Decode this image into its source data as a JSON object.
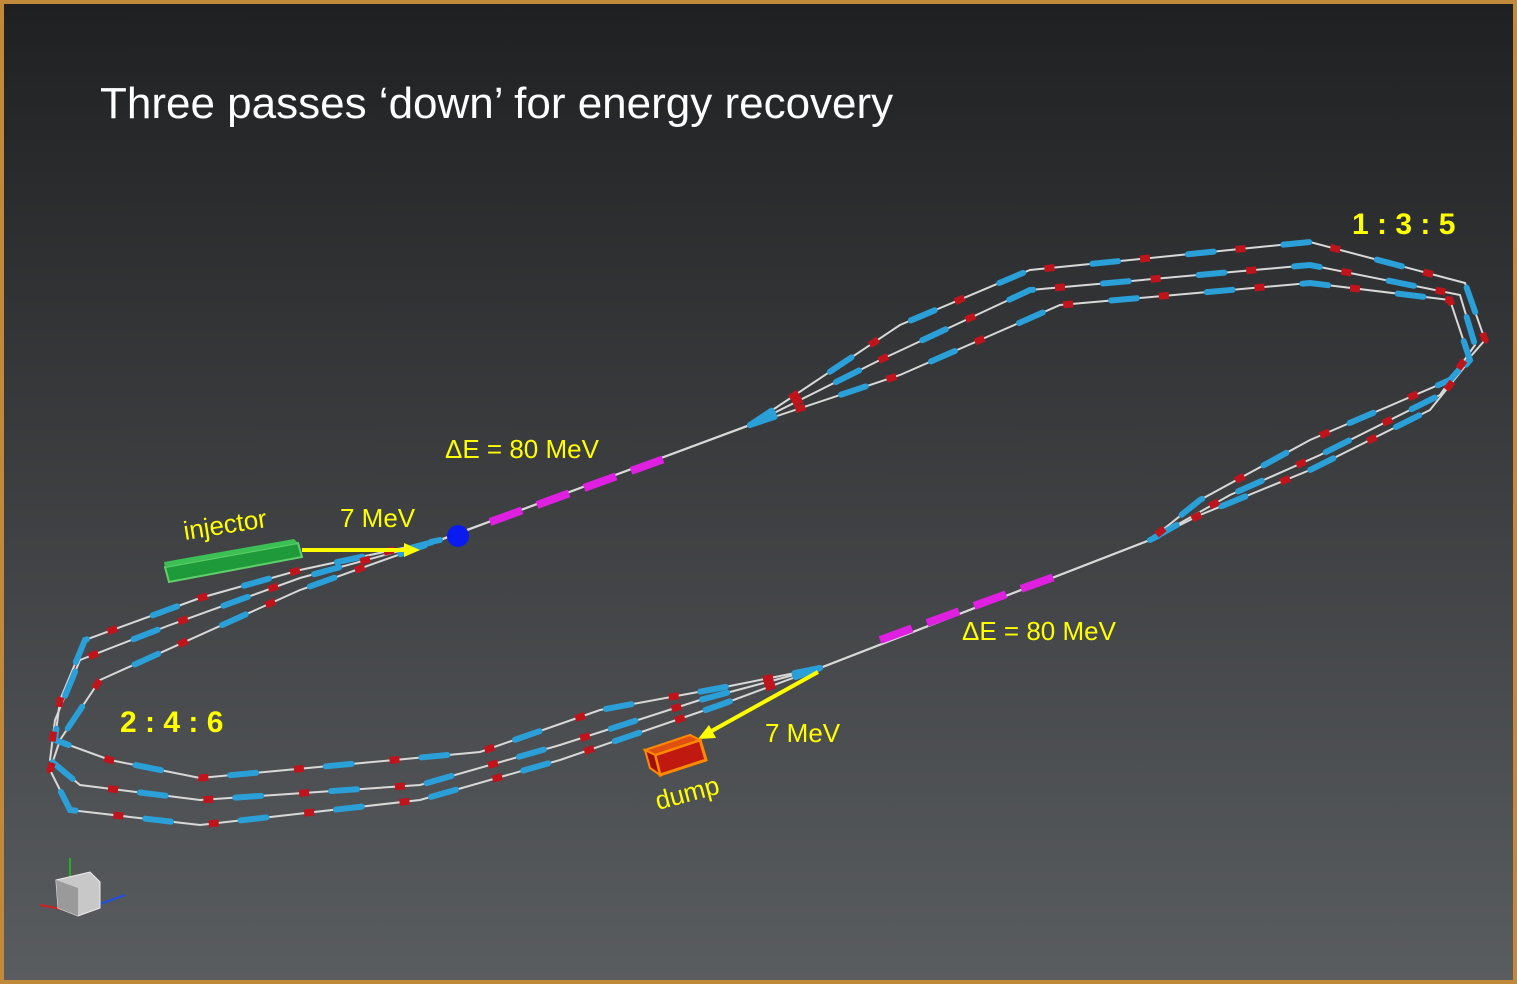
{
  "title": "Three passes ‘down’ for energy recovery",
  "labels": {
    "arc_right": "1 : 3 : 5",
    "arc_left": "2 : 4 : 6",
    "linac_top": "ΔE = 80 MeV",
    "linac_bottom": "ΔE = 80 MeV",
    "injector": "injector",
    "injector_energy": "7 MeV",
    "dump": "dump",
    "dump_energy": "7 MeV"
  }
}
